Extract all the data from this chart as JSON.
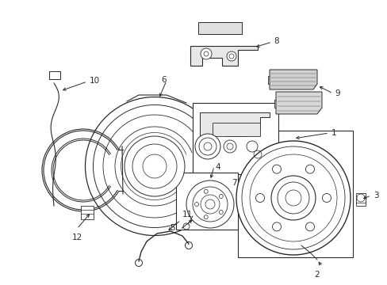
{
  "bg_color": "#ffffff",
  "fig_width": 4.89,
  "fig_height": 3.6,
  "dpi": 100,
  "line_color": "#2a2a2a",
  "lw": 0.7
}
